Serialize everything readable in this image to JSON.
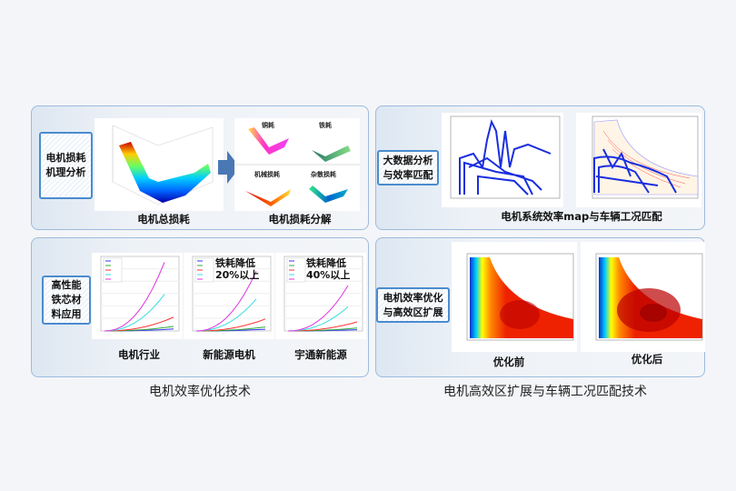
{
  "loss_panel": {
    "label": "电机损耗\n机理分析",
    "total_caption": "电机总损耗",
    "decomp_caption": "电机损耗分解",
    "sub_plots": [
      "铜耗",
      "铁耗",
      "机械损耗",
      "杂散损耗"
    ]
  },
  "material_panel": {
    "label": "高性能\n铁芯材\n料应用",
    "charts": [
      {
        "caption": "电机行业",
        "note": ""
      },
      {
        "caption": "新能源电机",
        "note": "铁耗降低\n20%以上"
      },
      {
        "caption": "宇通新能源",
        "note": "铁耗降低\n40%以上"
      }
    ]
  },
  "bigdata_panel": {
    "label": "大数据分析\n与效率匹配",
    "caption": "电机系统效率map与车辆工况匹配"
  },
  "expand_panel": {
    "label": "电机效率优化\n与高效区扩展",
    "before_caption": "优化前",
    "after_caption": "优化后"
  },
  "section_titles": {
    "left": "电机效率优化技术",
    "right": "电机高效区扩展与车辆工况匹配技术"
  },
  "colors": {
    "border": "#9dbbdc",
    "label_border": "#4a8ccf",
    "arrow": "#4a78b5"
  }
}
